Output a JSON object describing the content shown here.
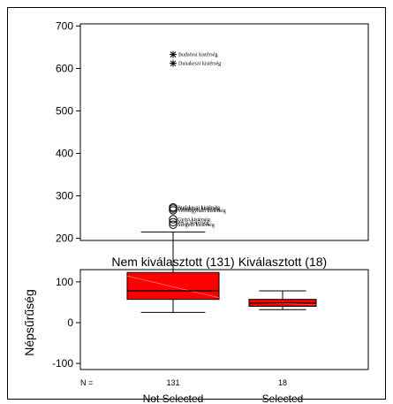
{
  "chart_data": {
    "type": "boxplot",
    "ylabel": "Népsűrűség",
    "n_prefix": "N =",
    "yticks_top": [
      200,
      300,
      400,
      500,
      600,
      700
    ],
    "yticks_bottom": [
      -100,
      0,
      100
    ],
    "axis_break": {
      "lower_ylim": [
        -115,
        130
      ],
      "upper_ylim": [
        195,
        705
      ]
    },
    "groups": [
      {
        "label_top": "Nem kiválasztott (131)",
        "label_bottom": "Not Selected",
        "n": "131",
        "whisker_low": 25,
        "q1": 57,
        "median": 78,
        "q3": 123,
        "whisker_high": 215,
        "outliers": [
          {
            "value": 273,
            "marker": "circle",
            "label": "Budakeszi kistérség"
          },
          {
            "value": 270,
            "marker": "circle",
            "label": "Dunakeszi kistérség"
          },
          {
            "value": 266,
            "marker": "circle",
            "label": "Veresegyházi kistérség"
          },
          {
            "value": 245,
            "marker": "circle",
            "label": "Györi kistérség"
          },
          {
            "value": 238,
            "marker": "circle",
            "label": "Pécsi kistérség"
          },
          {
            "value": 232,
            "marker": "circle",
            "label": "Szegedi kistérség"
          }
        ],
        "extremes": [
          {
            "value": 633,
            "marker": "star",
            "label": "Budaörsi kistérség"
          },
          {
            "value": 612,
            "marker": "star",
            "label": "Dunakeszi kistérség"
          }
        ]
      },
      {
        "label_top": "Kiválasztott (18)",
        "label_bottom": "Selected",
        "n": "18",
        "whisker_low": 32,
        "q1": 40,
        "median": 48,
        "q3": 57,
        "whisker_high": 78,
        "outliers": [],
        "extremes": []
      }
    ],
    "colors": {
      "box": "#ff0000",
      "line": "#000000"
    }
  }
}
